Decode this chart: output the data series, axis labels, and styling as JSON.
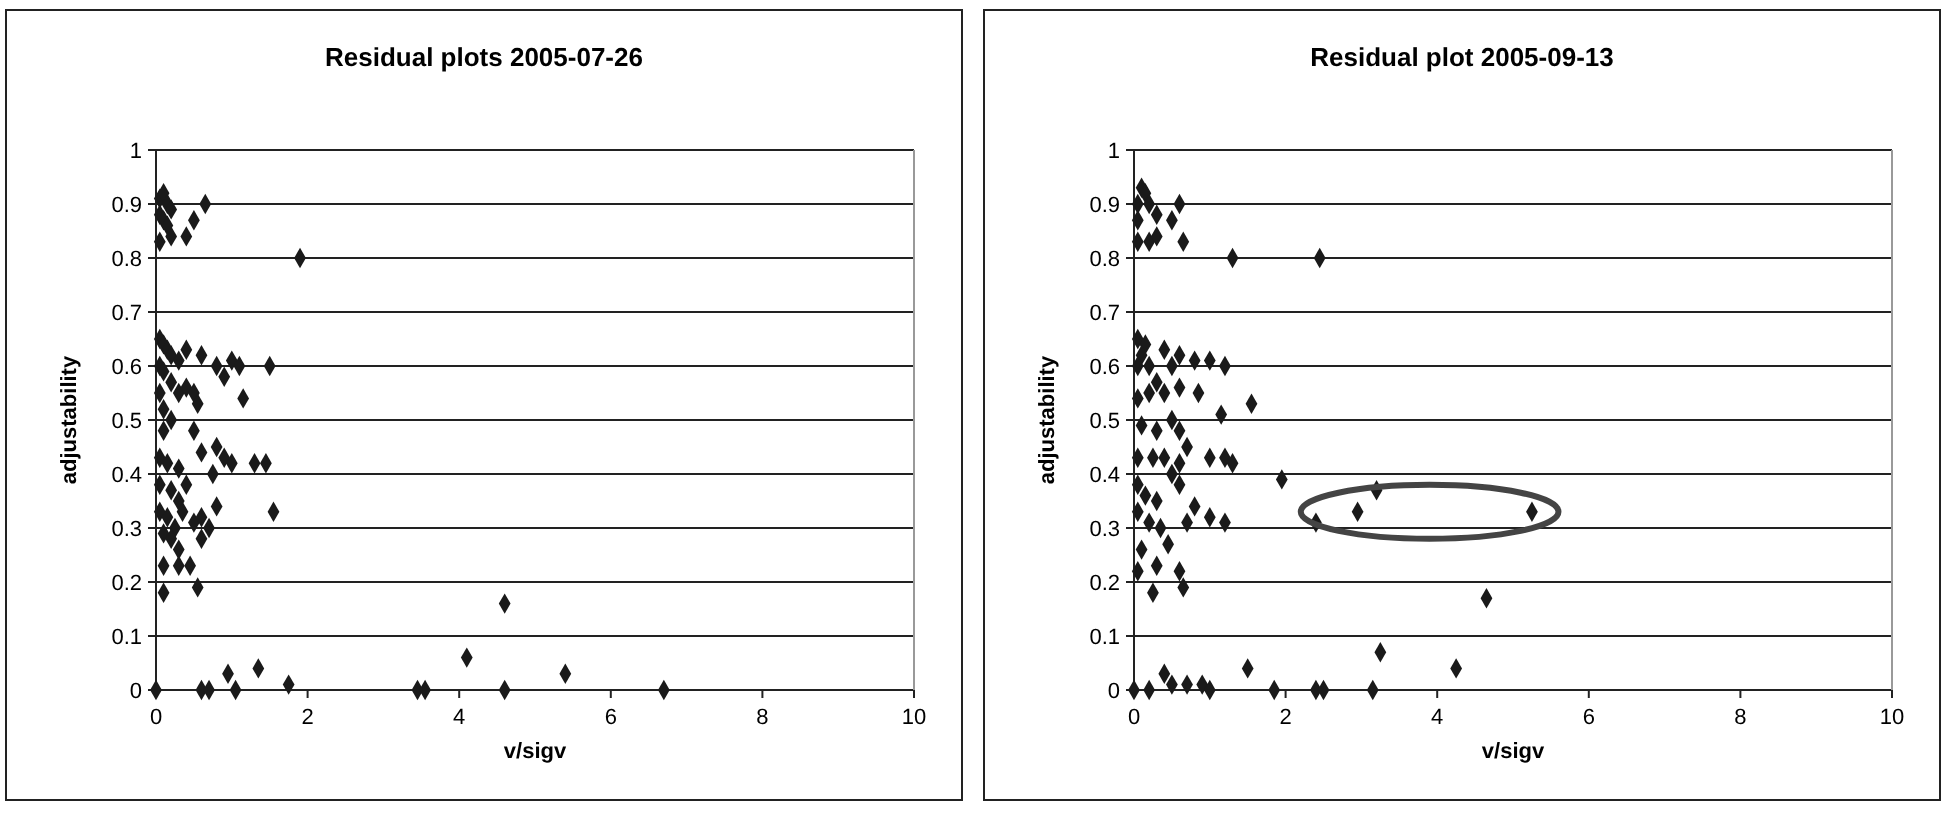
{
  "chart_data": [
    {
      "type": "scatter",
      "title": "Residual plots 2005-07-26",
      "xlabel": "v/sigv",
      "ylabel": "adjustability",
      "xlim": [
        0,
        10
      ],
      "ylim": [
        0,
        1
      ],
      "xticks": [
        0,
        2,
        4,
        6,
        8,
        10
      ],
      "yticks": [
        0,
        0.1,
        0.2,
        0.3,
        0.4,
        0.5,
        0.6,
        0.7,
        0.8,
        0.9,
        1
      ],
      "grid": "y",
      "marker": "diamond",
      "series": [
        {
          "color": "#1a1a1a",
          "x": [
            0.05,
            0.1,
            0.15,
            0.05,
            0.1,
            0.2,
            0.65,
            0.5,
            0.4,
            0.2,
            0.05,
            0.15,
            1.9,
            0.05,
            0.1,
            0.15,
            0.2,
            0.3,
            0.05,
            0.1,
            0.4,
            0.6,
            0.8,
            0.9,
            1.0,
            1.1,
            1.5,
            0.2,
            0.3,
            0.4,
            0.5,
            0.55,
            1.15,
            0.1,
            0.2,
            0.1,
            0.5,
            0.05,
            0.05,
            0.15,
            0.3,
            0.6,
            0.8,
            0.9,
            1.0,
            1.3,
            1.45,
            0.75,
            0.05,
            0.2,
            0.4,
            0.3,
            0.05,
            0.15,
            0.25,
            0.35,
            0.5,
            0.6,
            0.7,
            0.8,
            1.55,
            0.1,
            0.2,
            0.6,
            0.3,
            0.1,
            0.3,
            0.45,
            0.1,
            0.55,
            0,
            0.6,
            0.7,
            0.95,
            1.05,
            1.35,
            1.75,
            3.45,
            3.55,
            4.1,
            4.6,
            4.6,
            5.4,
            6.7
          ],
          "values": [
            0.91,
            0.92,
            0.9,
            0.88,
            0.87,
            0.89,
            0.9,
            0.87,
            0.84,
            0.84,
            0.83,
            0.86,
            0.8,
            0.65,
            0.64,
            0.63,
            0.62,
            0.61,
            0.6,
            0.59,
            0.63,
            0.62,
            0.6,
            0.58,
            0.61,
            0.6,
            0.6,
            0.57,
            0.55,
            0.56,
            0.55,
            0.53,
            0.54,
            0.52,
            0.5,
            0.48,
            0.48,
            0.55,
            0.43,
            0.42,
            0.41,
            0.44,
            0.45,
            0.43,
            0.42,
            0.42,
            0.42,
            0.4,
            0.38,
            0.37,
            0.38,
            0.35,
            0.33,
            0.32,
            0.3,
            0.33,
            0.31,
            0.32,
            0.3,
            0.34,
            0.33,
            0.29,
            0.28,
            0.28,
            0.26,
            0.23,
            0.23,
            0.23,
            0.18,
            0.19,
            0,
            0,
            0,
            0.03,
            0,
            0.04,
            0.01,
            0,
            0,
            0.06,
            0.16,
            0,
            0.03,
            0
          ]
        }
      ]
    },
    {
      "type": "scatter",
      "title": "Residual plot 2005-09-13",
      "xlabel": "v/sigv",
      "ylabel": "adjustability",
      "xlim": [
        0,
        10
      ],
      "ylim": [
        0,
        1
      ],
      "xticks": [
        0,
        2,
        4,
        6,
        8,
        10
      ],
      "yticks": [
        0,
        0.1,
        0.2,
        0.3,
        0.4,
        0.5,
        0.6,
        0.7,
        0.8,
        0.9,
        1
      ],
      "grid": "y",
      "marker": "diamond",
      "series": [
        {
          "color": "#1a1a1a",
          "x": [
            0.05,
            0.1,
            0.15,
            0.2,
            0.3,
            0.05,
            0.6,
            0.5,
            0.05,
            0.2,
            0.3,
            0.65,
            1.3,
            2.45,
            0.05,
            0.15,
            0.1,
            0.2,
            0.4,
            0.6,
            0.8,
            1.0,
            1.2,
            0.05,
            0.5,
            0.3,
            0.2,
            0.4,
            0.6,
            0.85,
            1.15,
            1.55,
            0.05,
            0.1,
            0.3,
            0.5,
            0.6,
            0.05,
            0.25,
            0.4,
            0.6,
            0.7,
            1.0,
            1.2,
            1.3,
            0.5,
            0.6,
            1.95,
            0.05,
            0.15,
            0.3,
            0.8,
            1.0,
            1.2,
            0.7,
            0.05,
            0.2,
            0.35,
            0.45,
            0.1,
            0.05,
            0.3,
            0.6,
            0.65,
            0.25,
            2.4,
            2.95,
            3.2,
            5.25,
            4.65,
            3.25,
            4.25,
            1.5,
            1.85,
            2.4,
            2.5,
            3.15,
            0,
            0.2,
            0.4,
            0.5,
            0.7,
            0.9,
            1.0
          ],
          "values": [
            0.9,
            0.93,
            0.92,
            0.9,
            0.88,
            0.87,
            0.9,
            0.87,
            0.83,
            0.83,
            0.84,
            0.83,
            0.8,
            0.8,
            0.65,
            0.64,
            0.62,
            0.6,
            0.63,
            0.62,
            0.61,
            0.61,
            0.6,
            0.6,
            0.6,
            0.57,
            0.55,
            0.55,
            0.56,
            0.55,
            0.51,
            0.53,
            0.54,
            0.49,
            0.48,
            0.5,
            0.48,
            0.43,
            0.43,
            0.43,
            0.42,
            0.45,
            0.43,
            0.43,
            0.42,
            0.4,
            0.38,
            0.39,
            0.38,
            0.36,
            0.35,
            0.34,
            0.32,
            0.31,
            0.31,
            0.33,
            0.31,
            0.3,
            0.27,
            0.26,
            0.22,
            0.23,
            0.22,
            0.19,
            0.18,
            0.31,
            0.33,
            0.37,
            0.33,
            0.17,
            0.07,
            0.04,
            0.04,
            0,
            0,
            0,
            0,
            0,
            0,
            0.03,
            0.01,
            0.01,
            0.01,
            0
          ]
        }
      ]
    }
  ]
}
